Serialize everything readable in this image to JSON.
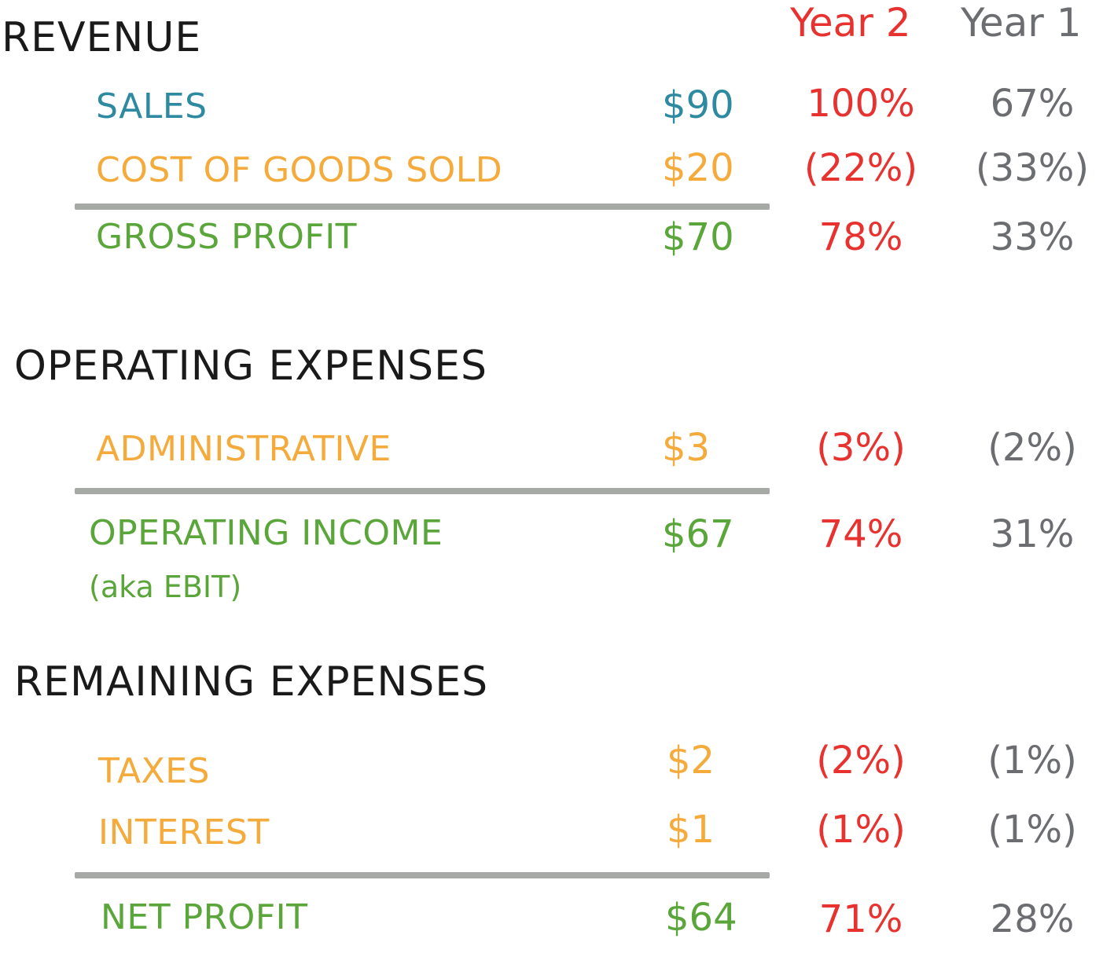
{
  "colors": {
    "heading": "#1a1a1a",
    "sales": "#2e8aa0",
    "expense": "#f5ab3c",
    "profit": "#5aa63a",
    "year2": "#e8322f",
    "year1": "#6b6d70",
    "rule": "#a7a9a6"
  },
  "columns": {
    "year2": "Year 2",
    "year1": "Year 1"
  },
  "revenue": {
    "heading": "REVENUE",
    "sales": {
      "label": "SALES",
      "amount": "$90",
      "year2": "100%",
      "year1": "67%"
    },
    "cogs": {
      "label": "COST OF GOODS SOLD",
      "amount": "$20",
      "year2": "(22%)",
      "year1": "(33%)"
    },
    "gross_profit": {
      "label": "GROSS PROFIT",
      "amount": "$70",
      "year2": "78%",
      "year1": "33%"
    }
  },
  "operating": {
    "heading": "OPERATING EXPENSES",
    "administrative": {
      "label": "ADMINISTRATIVE",
      "amount": "$3",
      "year2": "(3%)",
      "year1": "(2%)"
    },
    "operating_income": {
      "label": "OPERATING INCOME",
      "sublabel": "(aka EBIT)",
      "amount": "$67",
      "year2": "74%",
      "year1": "31%"
    }
  },
  "remaining": {
    "heading": "REMAINING EXPENSES",
    "taxes": {
      "label": "TAXES",
      "amount": "$2",
      "year2": "(2%)",
      "year1": "(1%)"
    },
    "interest": {
      "label": "INTEREST",
      "amount": "$1",
      "year2": "(1%)",
      "year1": "(1%)"
    },
    "net_profit": {
      "label": "NET PROFIT",
      "amount": "$64",
      "year2": "71%",
      "year1": "28%"
    }
  }
}
